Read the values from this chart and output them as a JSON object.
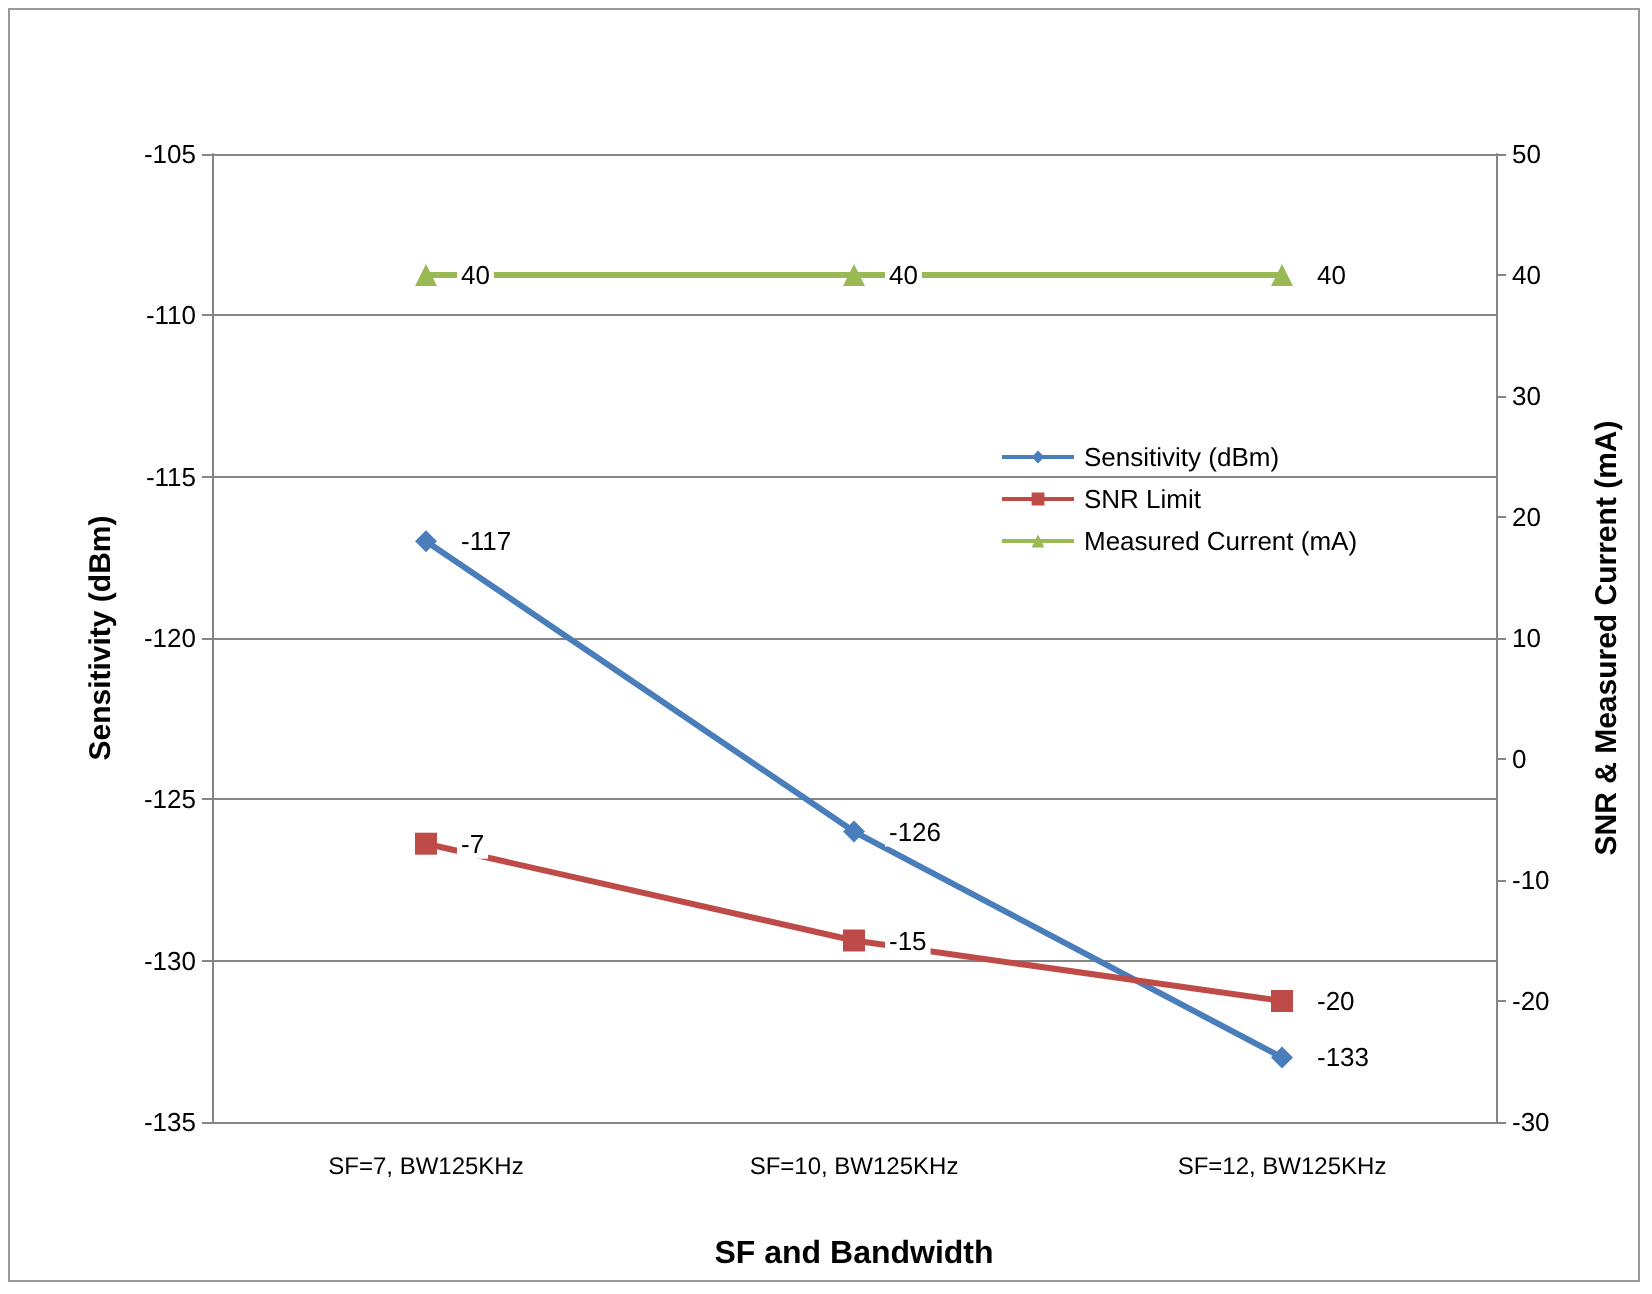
{
  "chart_data": {
    "type": "line",
    "xlabel": "SF and Bandwidth",
    "ylabel": "Sensitivity (dBm)",
    "y2label": "SNR & Measured Current (mA)",
    "categories": [
      "SF=7, BW125KHz",
      "SF=10, BW125KHz",
      "SF=12, BW125KHz"
    ],
    "series": [
      {
        "name": "Sensitivity (dBm)",
        "color": "#4a7ebb",
        "marker": "diamond",
        "values": [
          -117,
          -126,
          -133
        ]
      },
      {
        "name": "SNR Limit",
        "color": "#be4b48",
        "marker": "square",
        "axis": "y2",
        "values": [
          -7,
          -15,
          -20
        ]
      },
      {
        "name": "Measured Current (mA)",
        "color": "#98b954",
        "marker": "triangle",
        "axis": "y2",
        "values": [
          40,
          40,
          40
        ]
      }
    ],
    "ylim": [
      -135,
      -105
    ],
    "yticks": [
      -135,
      -130,
      -125,
      -120,
      -115,
      -110,
      -105
    ],
    "y2lim": [
      -30,
      50
    ],
    "y2ticks": [
      -30,
      -20,
      -10,
      0,
      10,
      20,
      30,
      40,
      50
    ],
    "data_labels": true,
    "grid": "y",
    "legend": "right",
    "line_style": "solid"
  }
}
